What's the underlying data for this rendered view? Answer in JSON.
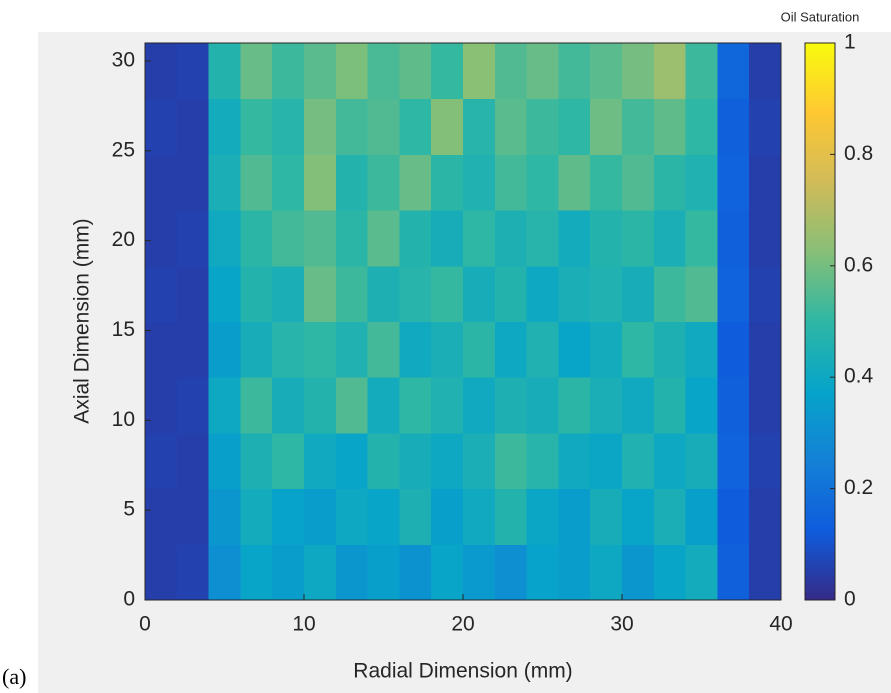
{
  "chart_data": {
    "type": "heatmap",
    "caption": "(a)",
    "xlabel": "Radial Dimension (mm)",
    "ylabel": "Axial Dimension (mm)",
    "colorbar_title": "Oil Saturation",
    "x_edges": [
      0,
      2,
      4,
      6,
      8,
      10,
      12,
      14,
      16,
      18,
      20,
      22,
      24,
      26,
      28,
      30,
      32,
      34,
      36,
      38,
      40
    ],
    "y_edges": [
      0,
      3.1,
      6.2,
      9.3,
      12.4,
      15.5,
      18.6,
      21.7,
      24.8,
      27.9,
      31
    ],
    "values": [
      [
        0.05,
        0.06,
        0.3,
        0.38,
        0.35,
        0.4,
        0.33,
        0.36,
        0.31,
        0.38,
        0.34,
        0.3,
        0.37,
        0.35,
        0.4,
        0.33,
        0.38,
        0.42,
        0.14,
        0.05
      ],
      [
        0.05,
        0.05,
        0.33,
        0.42,
        0.37,
        0.35,
        0.4,
        0.38,
        0.45,
        0.36,
        0.41,
        0.47,
        0.39,
        0.35,
        0.43,
        0.38,
        0.44,
        0.36,
        0.13,
        0.05
      ],
      [
        0.06,
        0.05,
        0.36,
        0.45,
        0.5,
        0.41,
        0.38,
        0.47,
        0.43,
        0.4,
        0.44,
        0.52,
        0.48,
        0.41,
        0.39,
        0.46,
        0.4,
        0.43,
        0.15,
        0.06
      ],
      [
        0.05,
        0.06,
        0.4,
        0.52,
        0.43,
        0.47,
        0.55,
        0.42,
        0.5,
        0.46,
        0.41,
        0.45,
        0.43,
        0.49,
        0.44,
        0.41,
        0.47,
        0.38,
        0.14,
        0.05
      ],
      [
        0.05,
        0.05,
        0.35,
        0.43,
        0.48,
        0.5,
        0.46,
        0.53,
        0.41,
        0.44,
        0.49,
        0.4,
        0.46,
        0.38,
        0.42,
        0.5,
        0.45,
        0.41,
        0.13,
        0.05
      ],
      [
        0.06,
        0.05,
        0.38,
        0.47,
        0.44,
        0.58,
        0.52,
        0.45,
        0.48,
        0.51,
        0.43,
        0.47,
        0.4,
        0.44,
        0.46,
        0.43,
        0.52,
        0.55,
        0.15,
        0.06
      ],
      [
        0.05,
        0.06,
        0.41,
        0.49,
        0.53,
        0.55,
        0.49,
        0.56,
        0.47,
        0.43,
        0.5,
        0.45,
        0.48,
        0.42,
        0.47,
        0.49,
        0.44,
        0.51,
        0.14,
        0.05
      ],
      [
        0.05,
        0.05,
        0.44,
        0.55,
        0.5,
        0.62,
        0.47,
        0.52,
        0.58,
        0.49,
        0.46,
        0.53,
        0.5,
        0.57,
        0.51,
        0.55,
        0.49,
        0.46,
        0.15,
        0.05
      ],
      [
        0.06,
        0.05,
        0.42,
        0.51,
        0.48,
        0.6,
        0.53,
        0.55,
        0.5,
        0.62,
        0.48,
        0.56,
        0.52,
        0.5,
        0.59,
        0.53,
        0.57,
        0.5,
        0.14,
        0.06
      ],
      [
        0.05,
        0.06,
        0.47,
        0.58,
        0.52,
        0.56,
        0.61,
        0.54,
        0.57,
        0.51,
        0.63,
        0.55,
        0.58,
        0.53,
        0.56,
        0.6,
        0.66,
        0.52,
        0.16,
        0.05
      ]
    ],
    "xlim": [
      0,
      40
    ],
    "xticks": [
      0,
      10,
      20,
      30,
      40
    ],
    "ylim": [
      0,
      31
    ],
    "yticks": [
      0,
      5,
      10,
      15,
      20,
      25,
      30
    ],
    "clim": [
      0,
      1
    ],
    "cticks": [
      0,
      0.2,
      0.4,
      0.6,
      0.8,
      1
    ],
    "colormap": [
      "#352a87",
      "#0f5cdd",
      "#1481d6",
      "#06a4ca",
      "#2eb7a4",
      "#87bf77",
      "#d1bb59",
      "#fec832",
      "#f9fb0e"
    ]
  }
}
